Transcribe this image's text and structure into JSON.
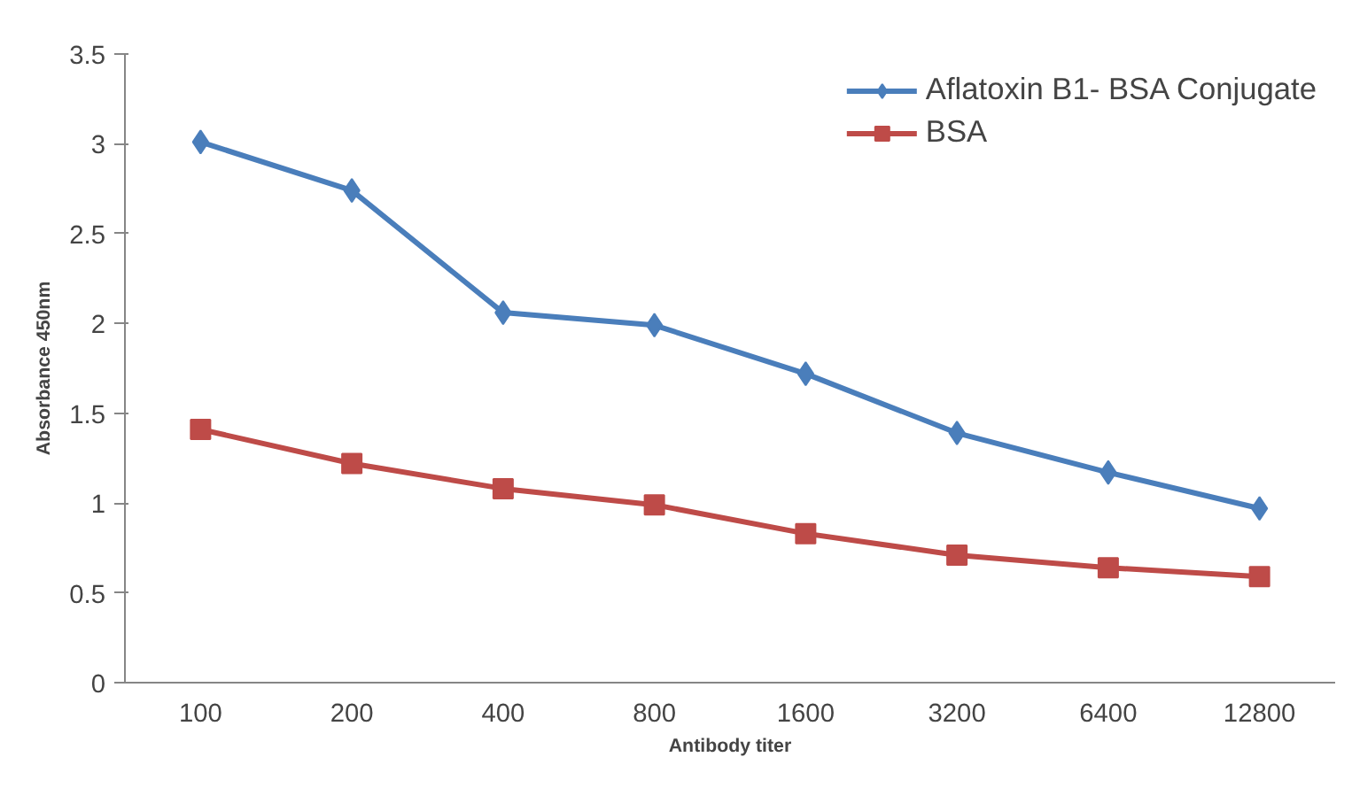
{
  "chart_data": {
    "type": "line",
    "xlabel": "Antibody titer",
    "ylabel": "Absorbance 450nm",
    "categories": [
      "100",
      "200",
      "400",
      "800",
      "1600",
      "3200",
      "6400",
      "12800"
    ],
    "ylim": [
      0,
      3.5
    ],
    "yticks": [
      0,
      0.5,
      1,
      1.5,
      2,
      2.5,
      3,
      3.5
    ],
    "grid": false,
    "legend": "top right",
    "series": [
      {
        "name": "Aflatoxin B1- BSA Conjugate",
        "color": "#4a7ebb",
        "marker": "diamond",
        "values": [
          3.01,
          2.74,
          2.06,
          1.99,
          1.72,
          1.39,
          1.17,
          0.97
        ]
      },
      {
        "name": "BSA",
        "color": "#be4b48",
        "marker": "square",
        "values": [
          1.41,
          1.22,
          1.08,
          0.99,
          0.83,
          0.71,
          0.64,
          0.59
        ]
      }
    ]
  }
}
